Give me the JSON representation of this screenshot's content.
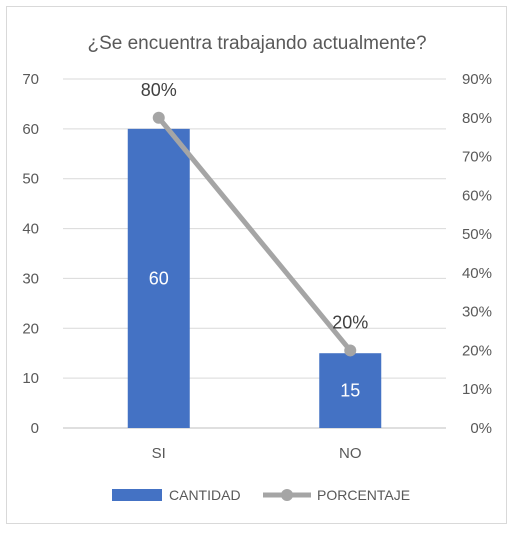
{
  "chart_data": {
    "type": "bar",
    "title": "¿Se encuentra trabajando actualmente?",
    "categories": [
      "SI",
      "NO"
    ],
    "series": [
      {
        "name": "CANTIDAD",
        "type": "bar",
        "axis": "left",
        "color": "#4472c4",
        "values": [
          60,
          15
        ],
        "labels": [
          "60",
          "15"
        ]
      },
      {
        "name": "PORCENTAJE",
        "type": "line",
        "axis": "right",
        "color": "#a5a5a5",
        "values": [
          0.8,
          0.2
        ],
        "labels": [
          "80%",
          "20%"
        ]
      }
    ],
    "y_left": {
      "min": 0,
      "max": 70,
      "ticks": [
        "0",
        "10",
        "20",
        "30",
        "40",
        "50",
        "60",
        "70"
      ]
    },
    "y_right": {
      "min": 0,
      "max": 0.9,
      "ticks": [
        "0%",
        "10%",
        "20%",
        "30%",
        "40%",
        "50%",
        "60%",
        "70%",
        "80%",
        "90%"
      ]
    },
    "grid": true,
    "legend": "bottom"
  }
}
